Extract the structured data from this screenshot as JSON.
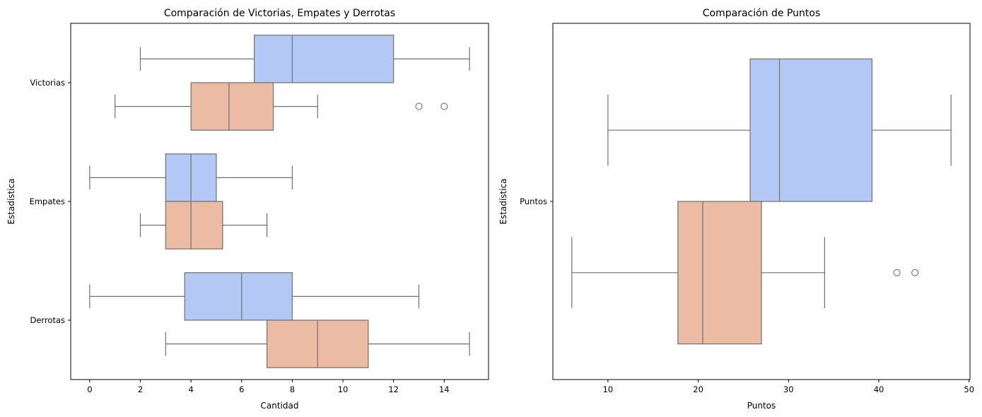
{
  "colors": {
    "box_a": "#b3c8f4",
    "box_b": "#ecbba4",
    "line": "#707070"
  },
  "chart_data": [
    {
      "type": "box",
      "orientation": "horizontal",
      "title": "Comparación de Victorias, Empates y Derrotas",
      "xlabel": "Cantidad",
      "ylabel": "Estadística",
      "xlim": [
        -0.75,
        15.75
      ],
      "xticks": [
        "0",
        "2",
        "4",
        "6",
        "8",
        "10",
        "12",
        "14"
      ],
      "xtick_values": [
        0,
        2,
        4,
        6,
        8,
        10,
        12,
        14
      ],
      "categories": [
        "Victorias",
        "Empates",
        "Derrotas"
      ],
      "groups": [
        {
          "boxes": [
            {
              "whisker_low": 2,
              "q1": 6.5,
              "median": 8,
              "q3": 12,
              "whisker_high": 15,
              "outliers": []
            },
            {
              "whisker_low": 1,
              "q1": 4,
              "median": 5.5,
              "q3": 7.25,
              "whisker_high": 9,
              "outliers": [
                13,
                14
              ]
            }
          ]
        },
        {
          "boxes": [
            {
              "whisker_low": 0,
              "q1": 3,
              "median": 4,
              "q3": 5,
              "whisker_high": 8,
              "outliers": []
            },
            {
              "whisker_low": 2,
              "q1": 3,
              "median": 4,
              "q3": 5.25,
              "whisker_high": 7,
              "outliers": []
            }
          ]
        },
        {
          "boxes": [
            {
              "whisker_low": 0,
              "q1": 3.75,
              "median": 6,
              "q3": 8,
              "whisker_high": 13,
              "outliers": []
            },
            {
              "whisker_low": 3,
              "q1": 7,
              "median": 9,
              "q3": 11,
              "whisker_high": 15,
              "outliers": []
            }
          ]
        }
      ]
    },
    {
      "type": "box",
      "orientation": "horizontal",
      "title": "Comparación de Puntos",
      "xlabel": "Puntos",
      "ylabel": "Estadística",
      "xlim": [
        3.9,
        50.1
      ],
      "xticks": [
        "10",
        "20",
        "30",
        "40",
        "50"
      ],
      "xtick_values": [
        10,
        20,
        30,
        40,
        50
      ],
      "categories": [
        "Puntos"
      ],
      "groups": [
        {
          "boxes": [
            {
              "whisker_low": 10,
              "q1": 25.75,
              "median": 29,
              "q3": 39.25,
              "whisker_high": 48,
              "outliers": []
            },
            {
              "whisker_low": 6,
              "q1": 17.75,
              "median": 20.5,
              "q3": 27,
              "whisker_high": 34,
              "outliers": [
                42,
                44
              ]
            }
          ]
        }
      ]
    }
  ]
}
